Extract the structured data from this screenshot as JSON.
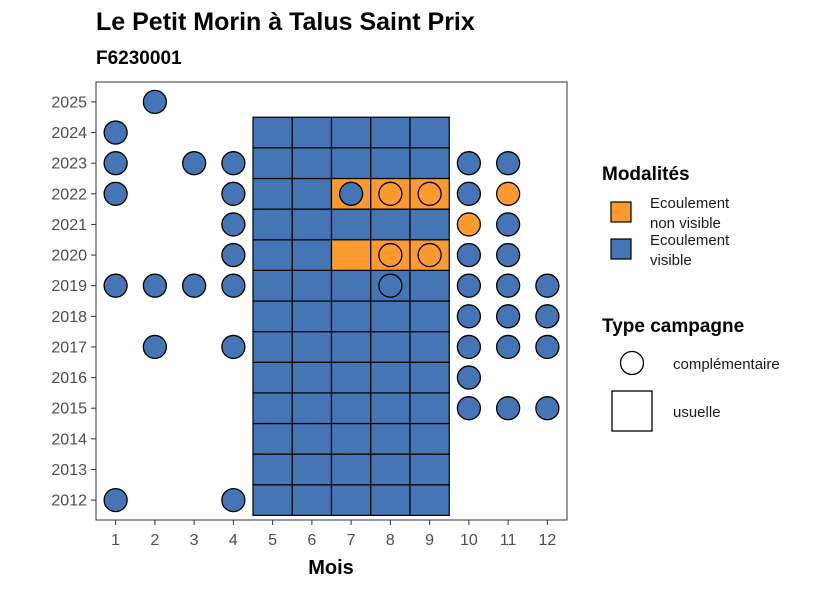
{
  "chart_data": {
    "type": "scatter",
    "title": "Le Petit Morin à Talus Saint Prix",
    "subtitle": "F6230001",
    "xlabel": "Mois",
    "ylabel": "",
    "x_ticks": [
      1,
      2,
      3,
      4,
      5,
      6,
      7,
      8,
      9,
      10,
      11,
      12
    ],
    "y_ticks": [
      2012,
      2013,
      2014,
      2015,
      2016,
      2017,
      2018,
      2019,
      2020,
      2021,
      2022,
      2023,
      2024,
      2025
    ],
    "xlim": [
      0.5,
      12.5
    ],
    "ylim": [
      2011.35,
      2025.65
    ],
    "colors": {
      "Ecoulement visible": "#4575b4",
      "Ecoulement non visible": "#fd9a2f"
    },
    "legend_modalites": {
      "title": "Modalités",
      "items": [
        {
          "lines": [
            "Ecoulement",
            "non visible"
          ],
          "color": "#fd9a2f"
        },
        {
          "lines": [
            "Ecoulement",
            "visible"
          ],
          "color": "#4575b4"
        }
      ]
    },
    "legend_type": {
      "title": "Type campagne",
      "items": [
        {
          "label": "complémentaire",
          "shape": "circle"
        },
        {
          "label": "usuelle",
          "shape": "square"
        }
      ]
    },
    "usuelle": {
      "months": [
        5,
        6,
        7,
        8,
        9
      ],
      "years": [
        2012,
        2013,
        2014,
        2015,
        2016,
        2017,
        2018,
        2019,
        2020,
        2021,
        2022,
        2023,
        2024
      ],
      "non_visible": [
        [
          7,
          2020
        ],
        [
          8,
          2020
        ],
        [
          9,
          2020
        ],
        [
          7,
          2022
        ],
        [
          8,
          2022
        ],
        [
          9,
          2022
        ]
      ]
    },
    "complementaire": [
      {
        "month": 2,
        "year": 2025,
        "modalite": "visible"
      },
      {
        "month": 1,
        "year": 2024,
        "modalite": "visible"
      },
      {
        "month": 1,
        "year": 2023,
        "modalite": "visible"
      },
      {
        "month": 3,
        "year": 2023,
        "modalite": "visible"
      },
      {
        "month": 4,
        "year": 2023,
        "modalite": "visible"
      },
      {
        "month": 10,
        "year": 2023,
        "modalite": "visible"
      },
      {
        "month": 11,
        "year": 2023,
        "modalite": "visible"
      },
      {
        "month": 1,
        "year": 2022,
        "modalite": "visible"
      },
      {
        "month": 4,
        "year": 2022,
        "modalite": "visible"
      },
      {
        "month": 7,
        "year": 2022,
        "modalite": "visible"
      },
      {
        "month": 8,
        "year": 2022,
        "modalite": "non_visible"
      },
      {
        "month": 9,
        "year": 2022,
        "modalite": "non_visible"
      },
      {
        "month": 10,
        "year": 2022,
        "modalite": "visible"
      },
      {
        "month": 11,
        "year": 2022,
        "modalite": "non_visible"
      },
      {
        "month": 4,
        "year": 2021,
        "modalite": "visible"
      },
      {
        "month": 10,
        "year": 2021,
        "modalite": "non_visible"
      },
      {
        "month": 11,
        "year": 2021,
        "modalite": "visible"
      },
      {
        "month": 4,
        "year": 2020,
        "modalite": "visible"
      },
      {
        "month": 8,
        "year": 2020,
        "modalite": "non_visible"
      },
      {
        "month": 9,
        "year": 2020,
        "modalite": "non_visible"
      },
      {
        "month": 10,
        "year": 2020,
        "modalite": "visible"
      },
      {
        "month": 11,
        "year": 2020,
        "modalite": "visible"
      },
      {
        "month": 1,
        "year": 2019,
        "modalite": "visible"
      },
      {
        "month": 2,
        "year": 2019,
        "modalite": "visible"
      },
      {
        "month": 3,
        "year": 2019,
        "modalite": "visible"
      },
      {
        "month": 4,
        "year": 2019,
        "modalite": "visible"
      },
      {
        "month": 8,
        "year": 2019,
        "modalite": "visible"
      },
      {
        "month": 10,
        "year": 2019,
        "modalite": "visible"
      },
      {
        "month": 11,
        "year": 2019,
        "modalite": "visible"
      },
      {
        "month": 12,
        "year": 2019,
        "modalite": "visible"
      },
      {
        "month": 10,
        "year": 2018,
        "modalite": "visible"
      },
      {
        "month": 11,
        "year": 2018,
        "modalite": "visible"
      },
      {
        "month": 12,
        "year": 2018,
        "modalite": "visible"
      },
      {
        "month": 2,
        "year": 2017,
        "modalite": "visible"
      },
      {
        "month": 4,
        "year": 2017,
        "modalite": "visible"
      },
      {
        "month": 10,
        "year": 2017,
        "modalite": "visible"
      },
      {
        "month": 11,
        "year": 2017,
        "modalite": "visible"
      },
      {
        "month": 12,
        "year": 2017,
        "modalite": "visible"
      },
      {
        "month": 10,
        "year": 2016,
        "modalite": "visible"
      },
      {
        "month": 10,
        "year": 2015,
        "modalite": "visible"
      },
      {
        "month": 11,
        "year": 2015,
        "modalite": "visible"
      },
      {
        "month": 12,
        "year": 2015,
        "modalite": "visible"
      },
      {
        "month": 1,
        "year": 2012,
        "modalite": "visible"
      },
      {
        "month": 4,
        "year": 2012,
        "modalite": "visible"
      }
    ]
  }
}
